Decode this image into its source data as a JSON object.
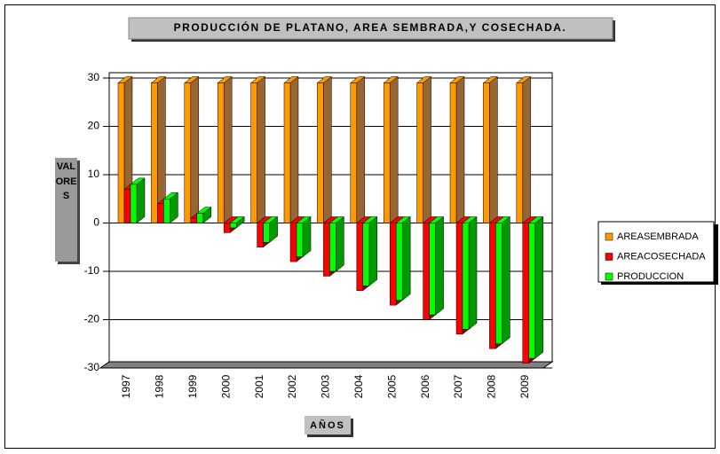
{
  "chart_data": {
    "type": "bar3d",
    "title": "PRODUCCIÓN DE PLATANO, AREA SEMBRADA,Y COSECHADA.",
    "x_label": "AÑOS",
    "y_label": "VALORES",
    "categories": [
      "1997",
      "1998",
      "1999",
      "2000",
      "2001",
      "2002",
      "2003",
      "2004",
      "2005",
      "2006",
      "2007",
      "2008",
      "2009"
    ],
    "series": [
      {
        "name": "AREASEMBRADA",
        "color": "#ff9900",
        "side_color": "#996633",
        "values": [
          29,
          29,
          29,
          29,
          29,
          29,
          29,
          29,
          29,
          29,
          29,
          29,
          29
        ]
      },
      {
        "name": "AREACOSECHADA",
        "color": "#ff0000",
        "side_color": "#990000",
        "values": [
          7,
          4,
          1,
          -2,
          -5,
          -8,
          -11,
          -14,
          -17,
          -20,
          -23,
          -26,
          -29
        ]
      },
      {
        "name": "PRODUCCION",
        "color": "#00ff00",
        "side_color": "#009900",
        "values": [
          8,
          5,
          2,
          -1,
          -4,
          -7,
          -10,
          -13,
          -16,
          -19,
          -22,
          -25,
          -28
        ]
      }
    ],
    "ylim": [
      -30,
      30
    ],
    "yticks": [
      -30,
      -20,
      -10,
      0,
      10,
      20,
      30
    ],
    "grid": true,
    "legend": "right"
  }
}
